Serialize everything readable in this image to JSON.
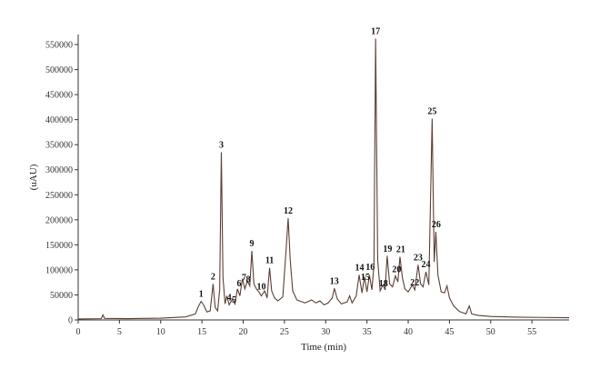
{
  "chart_data": {
    "type": "line",
    "xlabel": "Time (min)",
    "ylabel": "(uAU)",
    "xlim": [
      0,
      59.5
    ],
    "ylim": [
      0,
      570000
    ],
    "x_ticks": [
      0,
      5,
      10,
      15,
      20,
      25,
      30,
      35,
      40,
      45,
      50,
      55
    ],
    "y_ticks": [
      0,
      50000,
      100000,
      150000,
      200000,
      250000,
      300000,
      350000,
      400000,
      450000,
      500000,
      550000
    ],
    "grid": false,
    "line_color": "#5a4036",
    "series": [
      {
        "values": [
          [
            0,
            2000
          ],
          [
            2.8,
            2500
          ],
          [
            3.0,
            10000
          ],
          [
            3.2,
            3000
          ],
          [
            6,
            2600
          ],
          [
            10,
            3500
          ],
          [
            13,
            6000
          ],
          [
            14.2,
            12000
          ],
          [
            14.6,
            28000
          ],
          [
            14.9,
            37000
          ],
          [
            15.2,
            30000
          ],
          [
            15.6,
            16000
          ],
          [
            16.0,
            18000
          ],
          [
            16.35,
            72000
          ],
          [
            16.6,
            25000
          ],
          [
            16.9,
            18000
          ],
          [
            17.15,
            60000
          ],
          [
            17.35,
            335000
          ],
          [
            17.55,
            85000
          ],
          [
            17.8,
            32000
          ],
          [
            18.0,
            48000
          ],
          [
            18.3,
            30000
          ],
          [
            18.7,
            42000
          ],
          [
            19.0,
            32000
          ],
          [
            19.3,
            62000
          ],
          [
            19.6,
            48000
          ],
          [
            19.9,
            82000
          ],
          [
            20.2,
            62000
          ],
          [
            20.5,
            78000
          ],
          [
            20.8,
            68000
          ],
          [
            21.05,
            138000
          ],
          [
            21.3,
            72000
          ],
          [
            21.6,
            62000
          ],
          [
            21.9,
            56000
          ],
          [
            22.2,
            48000
          ],
          [
            22.6,
            58000
          ],
          [
            22.9,
            44000
          ],
          [
            23.2,
            104000
          ],
          [
            23.45,
            58000
          ],
          [
            23.8,
            44000
          ],
          [
            24.2,
            38000
          ],
          [
            24.8,
            46000
          ],
          [
            25.2,
            140000
          ],
          [
            25.45,
            203000
          ],
          [
            25.7,
            120000
          ],
          [
            26.0,
            58000
          ],
          [
            26.5,
            40000
          ],
          [
            27.5,
            34000
          ],
          [
            28.3,
            40000
          ],
          [
            28.8,
            34000
          ],
          [
            29.3,
            38000
          ],
          [
            29.8,
            30000
          ],
          [
            30.3,
            34000
          ],
          [
            30.8,
            44000
          ],
          [
            31.05,
            63000
          ],
          [
            31.4,
            42000
          ],
          [
            31.9,
            32000
          ],
          [
            32.6,
            36000
          ],
          [
            32.9,
            48000
          ],
          [
            33.2,
            34000
          ],
          [
            33.7,
            48000
          ],
          [
            34.05,
            90000
          ],
          [
            34.4,
            54000
          ],
          [
            34.7,
            86000
          ],
          [
            35.0,
            56000
          ],
          [
            35.3,
            90000
          ],
          [
            35.6,
            60000
          ],
          [
            35.85,
            110000
          ],
          [
            36.05,
            562000
          ],
          [
            36.3,
            120000
          ],
          [
            36.6,
            58000
          ],
          [
            36.95,
            70000
          ],
          [
            37.2,
            60000
          ],
          [
            37.45,
            128000
          ],
          [
            37.75,
            72000
          ],
          [
            38.1,
            66000
          ],
          [
            38.45,
            88000
          ],
          [
            38.75,
            76000
          ],
          [
            39.0,
            126000
          ],
          [
            39.3,
            84000
          ],
          [
            39.6,
            62000
          ],
          [
            40.0,
            56000
          ],
          [
            40.5,
            70000
          ],
          [
            40.8,
            60000
          ],
          [
            41.2,
            110000
          ],
          [
            41.5,
            72000
          ],
          [
            41.8,
            66000
          ],
          [
            42.15,
            96000
          ],
          [
            42.5,
            70000
          ],
          [
            42.9,
            402000
          ],
          [
            43.15,
            116000
          ],
          [
            43.35,
            176000
          ],
          [
            43.6,
            90000
          ],
          [
            44.0,
            56000
          ],
          [
            44.4,
            54000
          ],
          [
            44.7,
            68000
          ],
          [
            45.0,
            44000
          ],
          [
            45.5,
            28000
          ],
          [
            46.2,
            17000
          ],
          [
            47.0,
            12000
          ],
          [
            47.4,
            28000
          ],
          [
            47.7,
            12000
          ],
          [
            48.5,
            9000
          ],
          [
            50,
            7000
          ],
          [
            53,
            5500
          ],
          [
            56,
            5000
          ],
          [
            59.5,
            4500
          ]
        ]
      }
    ],
    "peak_labels": [
      {
        "label": "1",
        "x": 14.9,
        "y": 37000
      },
      {
        "label": "2",
        "x": 16.35,
        "y": 72000
      },
      {
        "label": "3",
        "x": 17.35,
        "y": 335000
      },
      {
        "label": "4",
        "x": 18.3,
        "y": 30000
      },
      {
        "label": "5",
        "x": 18.9,
        "y": 25000
      },
      {
        "label": "6",
        "x": 19.5,
        "y": 58000
      },
      {
        "label": "7",
        "x": 20.1,
        "y": 70000
      },
      {
        "label": "8",
        "x": 20.6,
        "y": 66000
      },
      {
        "label": "9",
        "x": 21.05,
        "y": 138000
      },
      {
        "label": "10",
        "x": 22.2,
        "y": 52000
      },
      {
        "label": "11",
        "x": 23.2,
        "y": 104000
      },
      {
        "label": "12",
        "x": 25.45,
        "y": 203000
      },
      {
        "label": "13",
        "x": 31.05,
        "y": 63000
      },
      {
        "label": "14",
        "x": 34.1,
        "y": 90000
      },
      {
        "label": "15",
        "x": 34.8,
        "y": 71000
      },
      {
        "label": "16",
        "x": 35.4,
        "y": 91000
      },
      {
        "label": "17",
        "x": 36.05,
        "y": 562000
      },
      {
        "label": "18",
        "x": 37.0,
        "y": 58000
      },
      {
        "label": "19",
        "x": 37.5,
        "y": 127000
      },
      {
        "label": "20",
        "x": 38.6,
        "y": 86000
      },
      {
        "label": "21",
        "x": 39.1,
        "y": 126000
      },
      {
        "label": "22",
        "x": 40.8,
        "y": 60000
      },
      {
        "label": "23",
        "x": 41.2,
        "y": 110000
      },
      {
        "label": "24",
        "x": 42.15,
        "y": 96000
      },
      {
        "label": "25",
        "x": 42.9,
        "y": 402000
      },
      {
        "label": "26",
        "x": 43.4,
        "y": 176000
      }
    ]
  }
}
